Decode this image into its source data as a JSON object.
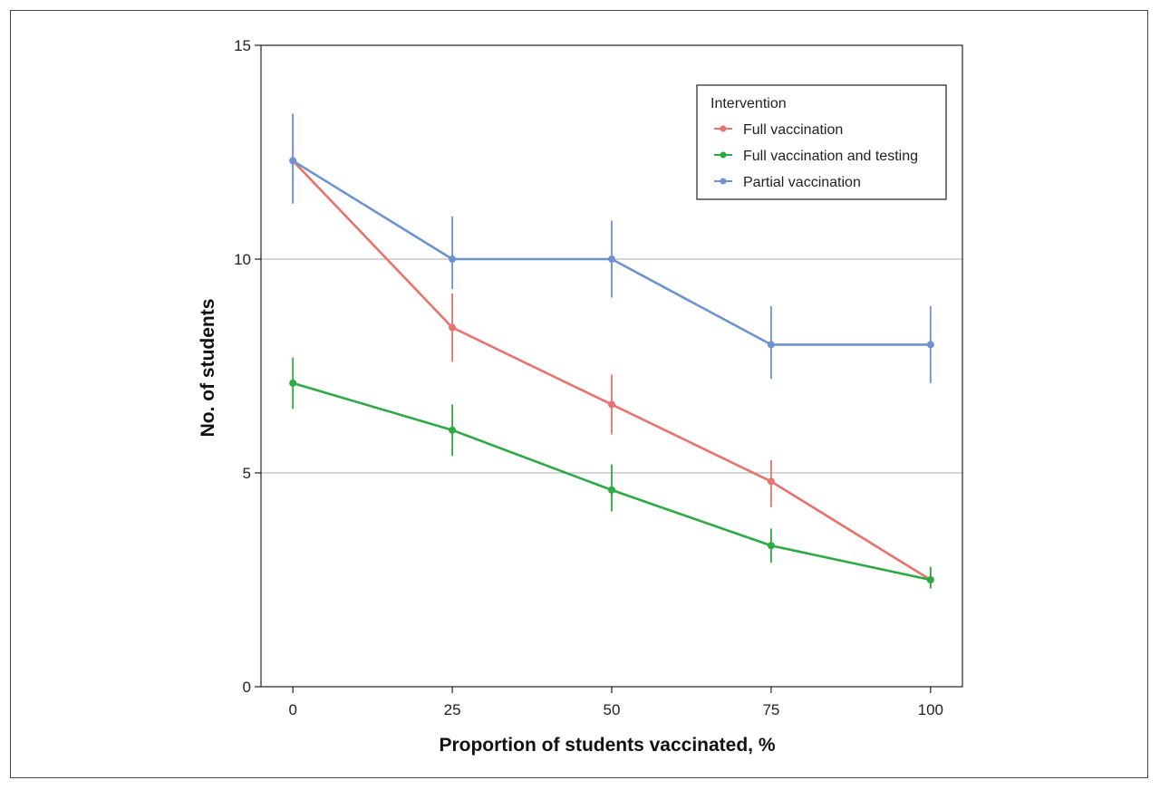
{
  "chart_data": {
    "type": "line",
    "xlabel": "Proportion of students vaccinated, %",
    "ylabel": "No. of students",
    "x": [
      0,
      25,
      50,
      75,
      100
    ],
    "xlim": [
      -5,
      105
    ],
    "ylim": [
      0,
      15
    ],
    "x_ticks": [
      "0",
      "25",
      "50",
      "75",
      "100"
    ],
    "y_ticks": [
      "0",
      "5",
      "10",
      "15"
    ],
    "grid": "horizontal at 5 and 10",
    "legend": {
      "title": "Intervention",
      "placement": "top-right"
    },
    "series": [
      {
        "name": "Full vaccination",
        "color": "#e8726d",
        "values": [
          12.3,
          8.4,
          6.6,
          4.8,
          2.5
        ],
        "lower": [
          11.3,
          7.6,
          5.9,
          4.2,
          2.3
        ],
        "upper": [
          13.4,
          9.2,
          7.3,
          5.3,
          2.8
        ]
      },
      {
        "name": "Full vaccination and testing",
        "color": "#2eaa44",
        "values": [
          7.1,
          6.0,
          4.6,
          3.3,
          2.5
        ],
        "lower": [
          6.5,
          5.4,
          4.1,
          2.9,
          2.3
        ],
        "upper": [
          7.7,
          6.6,
          5.2,
          3.7,
          2.8
        ]
      },
      {
        "name": "Partial vaccination",
        "color": "#6c93cf",
        "values": [
          12.3,
          10.0,
          10.0,
          8.0,
          8.0
        ],
        "lower": [
          11.3,
          9.3,
          9.1,
          7.2,
          7.1
        ],
        "upper": [
          13.4,
          11.0,
          10.9,
          8.9,
          8.9
        ]
      }
    ]
  }
}
